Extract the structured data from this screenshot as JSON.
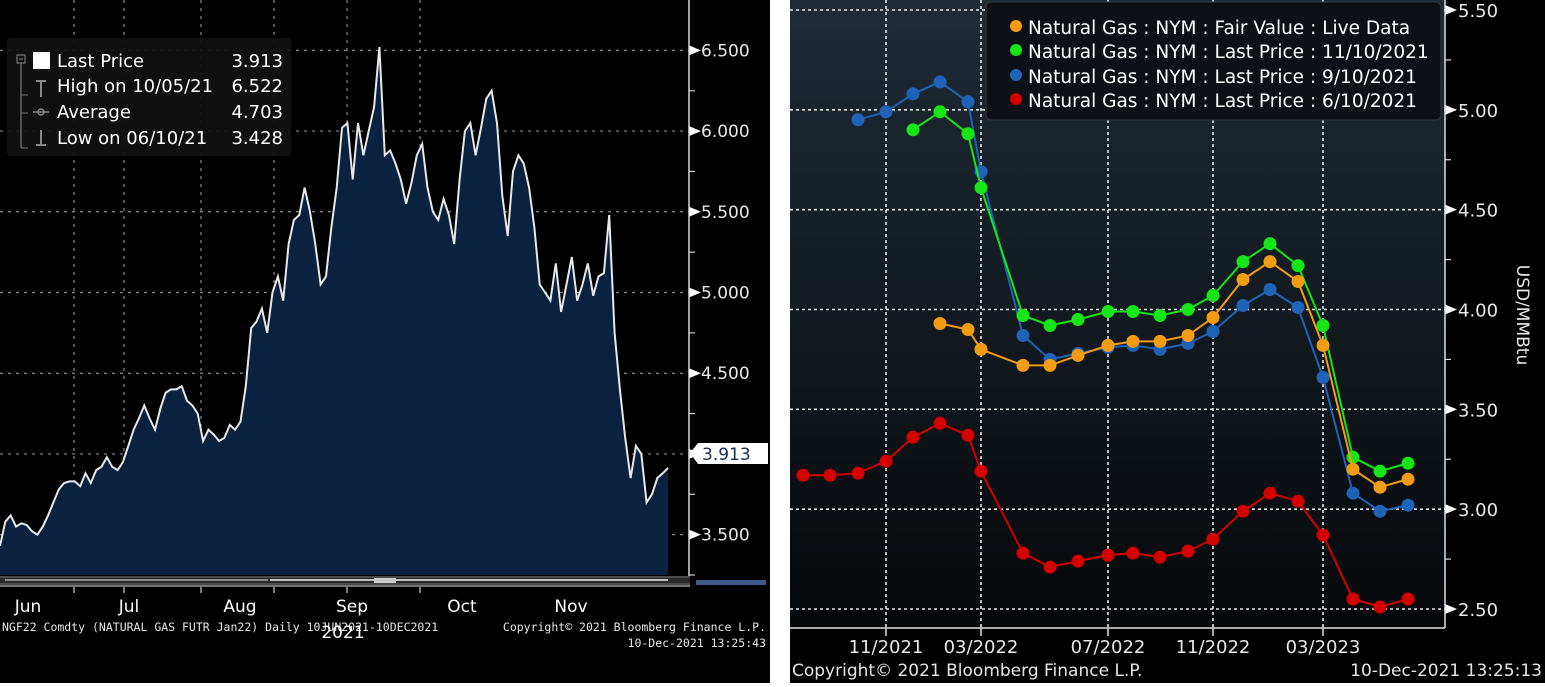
{
  "chart_data": [
    {
      "id": "left",
      "type": "area",
      "title": "",
      "ticker_line": "NGF22 Comdty (NATURAL GAS FUTR  Jan22)  Daily 10JUN2021-10DEC2021",
      "copyright": "Copyright© 2021 Bloomberg Finance L.P.",
      "timestamp": "10-Dec-2021 13:25:43",
      "xlabel": "2021",
      "ylabel": "",
      "x_ticks": [
        "Jun",
        "Jul",
        "Aug",
        "Sep",
        "Oct",
        "Nov"
      ],
      "y_ticks": [
        "3.500",
        "4.000",
        "4.500",
        "5.000",
        "5.500",
        "6.000",
        "6.500"
      ],
      "ylim": [
        3.25,
        6.75
      ],
      "grid": true,
      "last_price_tag": "3.913",
      "legend": {
        "position": "top-left",
        "entries": [
          {
            "label": "Last Price",
            "value": "3.913",
            "icon": "filled-square-icon"
          },
          {
            "label": "High on 10/05/21",
            "value": "6.522",
            "icon": "high-marker-icon"
          },
          {
            "label": "Average",
            "value": "4.703",
            "icon": "average-line-icon"
          },
          {
            "label": "Low on 06/10/21",
            "value": "3.428",
            "icon": "low-marker-icon"
          }
        ]
      },
      "series": [
        {
          "name": "Last Price",
          "color": "#e8e8e8",
          "fill": "#0a2240",
          "values": [
            3.43,
            3.58,
            3.62,
            3.55,
            3.57,
            3.56,
            3.52,
            3.5,
            3.55,
            3.62,
            3.7,
            3.78,
            3.82,
            3.83,
            3.83,
            3.8,
            3.88,
            3.82,
            3.9,
            3.92,
            3.98,
            3.92,
            3.9,
            3.95,
            4.05,
            4.15,
            4.22,
            4.3,
            4.22,
            4.15,
            4.28,
            4.38,
            4.4,
            4.4,
            4.42,
            4.33,
            4.3,
            4.25,
            4.08,
            4.15,
            4.12,
            4.08,
            4.1,
            4.18,
            4.15,
            4.2,
            4.42,
            4.78,
            4.82,
            4.9,
            4.75,
            5.0,
            5.1,
            4.95,
            5.3,
            5.45,
            5.48,
            5.65,
            5.5,
            5.3,
            5.05,
            5.1,
            5.4,
            5.65,
            6.02,
            6.05,
            5.7,
            6.05,
            5.85,
            6.0,
            6.15,
            6.52,
            5.85,
            5.88,
            5.8,
            5.7,
            5.55,
            5.68,
            5.85,
            5.92,
            5.65,
            5.5,
            5.45,
            5.58,
            5.48,
            5.3,
            5.7,
            6.0,
            6.05,
            5.85,
            6.02,
            6.2,
            6.25,
            6.05,
            5.6,
            5.35,
            5.75,
            5.85,
            5.8,
            5.65,
            5.4,
            5.05,
            5.0,
            4.95,
            5.18,
            4.88,
            5.05,
            5.22,
            4.95,
            5.05,
            5.18,
            4.98,
            5.1,
            5.12,
            5.48,
            4.75,
            4.4,
            4.1,
            3.85,
            4.05,
            4.0,
            3.7,
            3.75,
            3.85,
            3.88,
            3.913
          ]
        }
      ]
    },
    {
      "id": "right",
      "type": "line",
      "title": "",
      "copyright": "Copyright© 2021 Bloomberg Finance L.P.",
      "timestamp": "10-Dec-2021 13:25:13",
      "xlabel": "",
      "ylabel": "USD/MMBtu",
      "x_ticks": [
        "11/2021",
        "03/2022",
        "07/2022",
        "11/2022",
        "03/2023"
      ],
      "y_ticks": [
        "2.50",
        "3.00",
        "3.50",
        "4.00",
        "4.50",
        "5.00",
        "5.50"
      ],
      "ylim": [
        2.5,
        5.5
      ],
      "grid": true,
      "x": [
        "08/2021",
        "09/2021",
        "10/2021",
        "11/2021",
        "12/2021",
        "01/2022",
        "02/2022",
        "03/2022",
        "04/2022",
        "05/2022",
        "06/2022",
        "07/2022",
        "08/2022",
        "09/2022",
        "10/2022",
        "11/2022",
        "12/2022",
        "01/2023",
        "02/2023",
        "03/2023",
        "04/2023",
        "05/2023",
        "06/2023"
      ],
      "legend": {
        "position": "top-right",
        "entries": [
          "Natural Gas : NYM : Fair Value : Live Data",
          "Natural Gas : NYM : Last Price : 11/10/2021",
          "Natural Gas : NYM : Last Price : 9/10/2021",
          "Natural Gas : NYM : Last Price : 6/10/2021"
        ]
      },
      "series": [
        {
          "name": "Natural Gas : NYM : Fair Value : Live Data",
          "color": "#f39c12",
          "start_index": 5,
          "values": [
            3.93,
            3.9,
            3.8,
            3.72,
            3.72,
            3.77,
            3.82,
            3.84,
            3.84,
            3.87,
            3.96,
            4.15,
            4.24,
            4.14,
            3.82,
            3.2,
            3.11,
            3.15
          ]
        },
        {
          "name": "Natural Gas : NYM : Last Price : 11/10/2021",
          "color": "#16e516",
          "start_index": 4,
          "values": [
            4.9,
            4.99,
            4.88,
            4.61,
            3.97,
            3.92,
            3.95,
            3.99,
            3.99,
            3.97,
            4.0,
            4.07,
            4.24,
            4.33,
            4.22,
            3.92,
            3.26,
            3.19,
            3.23
          ]
        },
        {
          "name": "Natural Gas : NYM : Last Price : 9/10/2021",
          "color": "#1e63b8",
          "start_index": 2,
          "values": [
            4.95,
            4.99,
            5.08,
            5.14,
            5.04,
            4.69,
            3.87,
            3.75,
            3.78,
            3.81,
            3.82,
            3.8,
            3.83,
            3.89,
            4.02,
            4.1,
            4.01,
            3.66,
            3.08,
            2.99,
            3.02
          ]
        },
        {
          "name": "Natural Gas : NYM : Last Price : 6/10/2021",
          "color": "#d40000",
          "start_index": 0,
          "values": [
            3.17,
            3.17,
            3.18,
            3.24,
            3.36,
            3.43,
            3.37,
            3.19,
            2.78,
            2.71,
            2.74,
            2.77,
            2.78,
            2.76,
            2.79,
            2.85,
            2.99,
            3.08,
            3.04,
            2.87,
            2.55,
            2.51,
            2.55
          ]
        }
      ]
    }
  ]
}
